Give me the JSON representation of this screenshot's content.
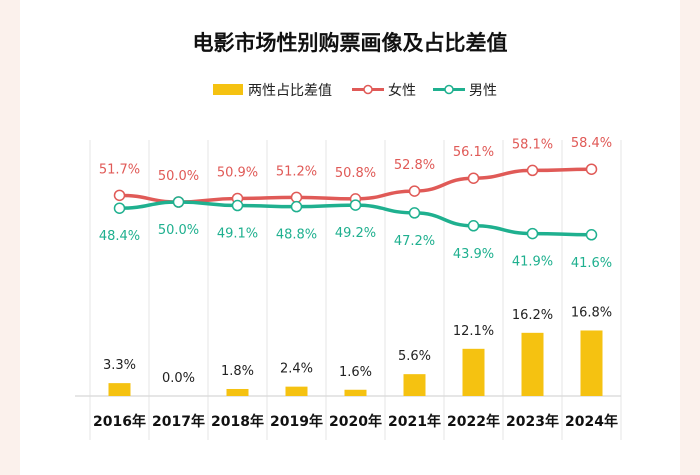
{
  "chart_data": {
    "type": "bar+line",
    "title": "电影市场性别购票画像及占比差值",
    "legend": {
      "placement": "top",
      "entries": [
        "两性占比差值",
        "女性",
        "男性"
      ]
    },
    "categories": [
      "2016年",
      "2017年",
      "2018年",
      "2019年",
      "2020年",
      "2021年",
      "2022年",
      "2023年",
      "2024年"
    ],
    "series": [
      {
        "name": "两性占比差值",
        "kind": "bar",
        "color": "#f5c211",
        "values": [
          3.3,
          0.0,
          1.8,
          2.4,
          1.6,
          5.6,
          12.1,
          16.2,
          16.8
        ],
        "labels": [
          "3.3%",
          "0.0%",
          "1.8%",
          "2.4%",
          "1.6%",
          "5.6%",
          "12.1%",
          "16.2%",
          "16.8%"
        ]
      },
      {
        "name": "女性",
        "kind": "line",
        "color": "#e05a57",
        "values": [
          51.7,
          50.0,
          50.9,
          51.2,
          50.8,
          52.8,
          56.1,
          58.1,
          58.4
        ],
        "labels": [
          "51.7%",
          "50.0%",
          "50.9%",
          "51.2%",
          "50.8%",
          "52.8%",
          "56.1%",
          "58.1%",
          "58.4%"
        ]
      },
      {
        "name": "男性",
        "kind": "line",
        "color": "#1fb08f",
        "values": [
          48.4,
          50.0,
          49.1,
          48.8,
          49.2,
          47.2,
          43.9,
          41.9,
          41.6
        ],
        "labels": [
          "48.4%",
          "50.0%",
          "49.1%",
          "48.8%",
          "49.2%",
          "47.2%",
          "43.9%",
          "41.9%",
          "41.6%"
        ]
      }
    ],
    "grid": "vertical"
  }
}
